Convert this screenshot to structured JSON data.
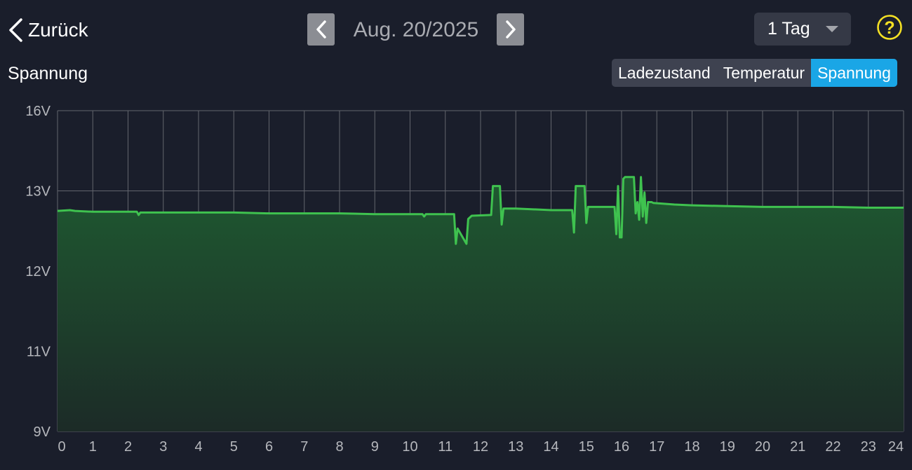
{
  "header": {
    "back_label": "Zurück",
    "date": "Aug. 20/2025",
    "range_label": "1 Tag",
    "help_glyph": "?"
  },
  "chart_title": "Spannung",
  "tabs": [
    {
      "label": "Ladezustand",
      "active": false
    },
    {
      "label": "Temperatur",
      "active": false
    },
    {
      "label": "Spannung",
      "active": true
    }
  ],
  "colors": {
    "background": "#1a1e2b",
    "line": "#3fc24f",
    "fill_top": "#1f5a31",
    "fill_bottom": "#1c2b27",
    "grid": "#62656d",
    "active_tab": "#1aa6e6",
    "help": "#f4e024"
  },
  "chart_data": {
    "type": "area",
    "title": "",
    "xlabel": "",
    "ylabel": "",
    "x_ticks": [
      "0",
      "1",
      "2",
      "3",
      "4",
      "5",
      "6",
      "7",
      "8",
      "9",
      "10",
      "11",
      "12",
      "13",
      "14",
      "15",
      "16",
      "17",
      "18",
      "19",
      "20",
      "21",
      "22",
      "23",
      "24"
    ],
    "xlim": [
      0,
      24
    ],
    "y_ticks": [
      {
        "label": "16V",
        "value": 16
      },
      {
        "label": "13V",
        "value": 13
      },
      {
        "label": "12V",
        "value": 12
      },
      {
        "label": "11V",
        "value": 11
      },
      {
        "label": "9V",
        "value": 9
      }
    ],
    "grid": true,
    "series": [
      {
        "x": [
          0,
          0.35,
          0.5,
          1.0,
          2.25,
          2.3,
          2.35,
          3.0,
          4.0,
          5.0,
          6.0,
          7.0,
          8.0,
          9.0,
          10.0,
          10.35,
          10.4,
          10.45,
          11.25,
          11.3,
          11.35,
          11.6,
          11.65,
          11.75,
          12.3,
          12.35,
          12.55,
          12.6,
          12.65,
          12.7,
          13.0,
          14.0,
          14.6,
          14.65,
          14.7,
          14.95,
          15.0,
          15.05,
          15.8,
          15.85,
          15.9,
          15.95,
          16.0,
          16.05,
          16.1,
          16.15,
          16.35,
          16.4,
          16.45,
          16.5,
          16.55,
          16.6,
          16.65,
          16.7,
          16.75,
          16.85,
          16.9,
          17.5,
          18.0,
          19.0,
          20.0,
          21.0,
          22.0,
          23.0,
          24.0
        ],
        "values": [
          12.75,
          12.76,
          12.75,
          12.74,
          12.74,
          12.7,
          12.73,
          12.73,
          12.73,
          12.73,
          12.72,
          12.72,
          12.72,
          12.71,
          12.71,
          12.71,
          12.68,
          12.71,
          12.71,
          12.34,
          12.53,
          12.34,
          12.65,
          12.69,
          12.7,
          13.18,
          13.18,
          12.58,
          12.78,
          12.78,
          12.78,
          12.76,
          12.76,
          12.48,
          13.18,
          13.18,
          12.6,
          12.8,
          12.8,
          12.46,
          13.18,
          12.42,
          12.42,
          13.45,
          13.52,
          13.52,
          13.52,
          12.72,
          12.86,
          12.64,
          13.52,
          12.68,
          12.98,
          12.6,
          12.86,
          12.86,
          12.85,
          12.83,
          12.82,
          12.81,
          12.8,
          12.8,
          12.8,
          12.79,
          12.79
        ]
      }
    ]
  }
}
